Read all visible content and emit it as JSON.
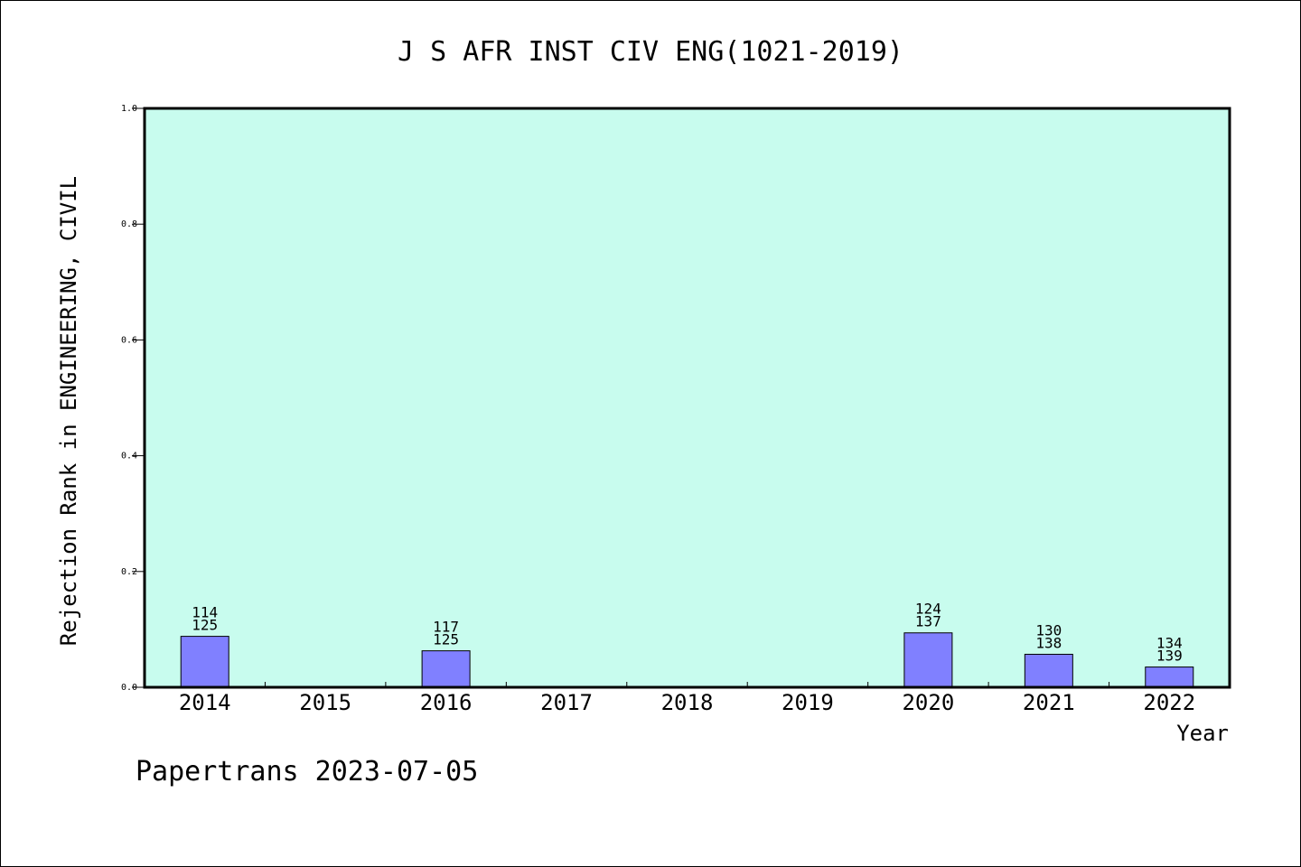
{
  "chart_data": {
    "type": "bar",
    "title": "J S AFR INST CIV ENG(1021-2019)",
    "xlabel": "Year",
    "ylabel": "Rejection Rank in ENGINEERING, CIVIL",
    "categories": [
      "2014",
      "2015",
      "2016",
      "2017",
      "2018",
      "2019",
      "2020",
      "2021",
      "2022"
    ],
    "values": [
      0.088,
      null,
      0.063,
      null,
      null,
      null,
      0.094,
      0.057,
      0.035
    ],
    "bar_labels": [
      [
        "114",
        "125"
      ],
      null,
      [
        "117",
        "125"
      ],
      null,
      null,
      null,
      [
        "124",
        "137"
      ],
      [
        "130",
        "138"
      ],
      [
        "134",
        "139"
      ]
    ],
    "ylim": [
      0,
      1.0
    ],
    "yticks": [
      "0.0",
      "0.2",
      "0.4",
      "0.6",
      "0.8",
      "1.0"
    ],
    "grid": false,
    "legend": "none",
    "colors": {
      "plot_background": "#c8fcee",
      "bar_fill": "#8080ff",
      "bar_stroke": "#000000"
    }
  },
  "footer": {
    "text": "Papertrans 2023-07-05"
  }
}
